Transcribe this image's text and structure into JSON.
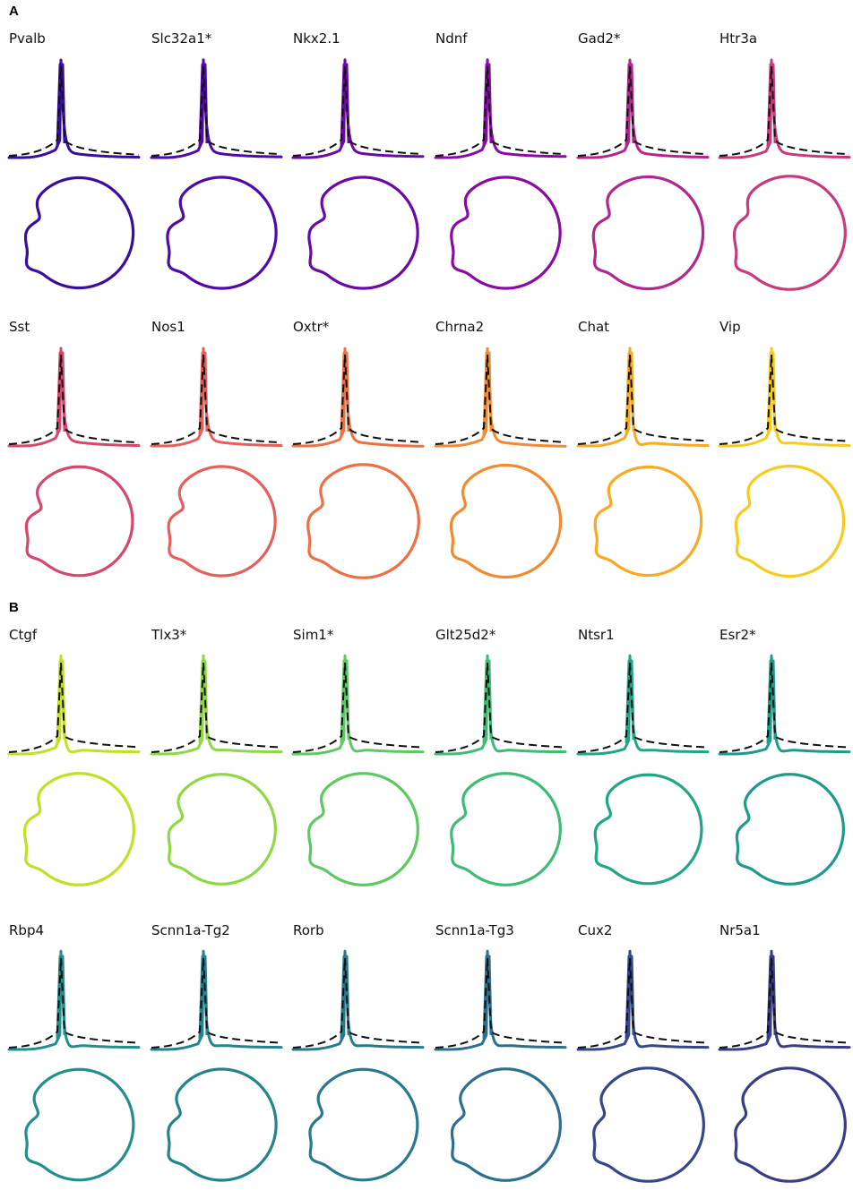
{
  "chart_data": [
    {
      "panel": "A",
      "type": "line",
      "title": "",
      "cells": [
        {
          "name": "Pvalb",
          "color": "#370f9c",
          "spike": 1.0,
          "preamp": 0.55,
          "fit": 0.2,
          "hyper": 0.18,
          "tail": 0.0,
          "loop": 0.86,
          "notch": 0.55,
          "notchpos": 0.4
        },
        {
          "name": "Slc32a1*",
          "color": "#4f0aa8",
          "spike": 1.0,
          "preamp": 0.5,
          "fit": 0.3,
          "hyper": 0.12,
          "tail": -0.01,
          "loop": 0.9,
          "notch": 0.62,
          "notchpos": 0.42
        },
        {
          "name": "Nkx2.1",
          "color": "#6b08a8",
          "spike": 1.0,
          "preamp": 0.5,
          "fit": 0.32,
          "hyper": 0.12,
          "tail": -0.02,
          "loop": 0.9,
          "notch": 0.6,
          "notchpos": 0.42
        },
        {
          "name": "Ndnf",
          "color": "#8b0aa5",
          "spike": 1.0,
          "preamp": 0.55,
          "fit": 0.3,
          "hyper": 0.12,
          "tail": -0.02,
          "loop": 0.9,
          "notch": 0.6,
          "notchpos": 0.45
        },
        {
          "name": "Gad2*",
          "color": "#b2268f",
          "spike": 1.0,
          "preamp": 0.5,
          "fit": 0.3,
          "hyper": 0.12,
          "tail": 0.0,
          "loop": 0.94,
          "notch": 0.58,
          "notchpos": 0.45
        },
        {
          "name": "Htr3a",
          "color": "#c73a7c",
          "spike": 1.0,
          "preamp": 0.45,
          "fit": 0.3,
          "hyper": 0.12,
          "tail": 0.0,
          "loop": 1.0,
          "notch": 0.45,
          "notchpos": 0.45
        },
        {
          "name": "Sst",
          "color": "#d6476c",
          "spike": 1.0,
          "preamp": 0.55,
          "fit": 0.3,
          "hyper": 0.12,
          "tail": 0.0,
          "loop": 0.8,
          "notch": 0.62,
          "notchpos": 0.38
        },
        {
          "name": "Nos1",
          "color": "#e4605b",
          "spike": 1.0,
          "preamp": 0.5,
          "fit": 0.3,
          "hyper": 0.12,
          "tail": 0.0,
          "loop": 0.82,
          "notch": 0.6,
          "notchpos": 0.38
        },
        {
          "name": "Oxtr*",
          "color": "#ec7044",
          "spike": 1.0,
          "preamp": 0.45,
          "fit": 0.35,
          "hyper": 0.15,
          "tail": 0.02,
          "loop": 1.0,
          "notch": 0.55,
          "notchpos": 0.42
        },
        {
          "name": "Chrna2",
          "color": "#f28a30",
          "spike": 1.0,
          "preamp": 0.45,
          "fit": 0.35,
          "hyper": 0.15,
          "tail": 0.02,
          "loop": 0.94,
          "notch": 0.55,
          "notchpos": 0.4
        },
        {
          "name": "Chat",
          "color": "#f7aa22",
          "spike": 1.0,
          "preamp": 0.55,
          "fit": 0.6,
          "hyper": 0.9,
          "tail": 0.0,
          "loop": 0.78,
          "notch": 0.58,
          "notchpos": 0.45
        },
        {
          "name": "Vip",
          "color": "#f6cb1e",
          "spike": 1.0,
          "preamp": 0.55,
          "fit": 0.55,
          "hyper": 0.6,
          "tail": 0.0,
          "loop": 0.86,
          "notch": 0.5,
          "notchpos": 0.42
        }
      ]
    },
    {
      "panel": "B",
      "type": "line",
      "title": "",
      "cells": [
        {
          "name": "Ctgf",
          "color": "#c2df23",
          "spike": 1.0,
          "preamp": 0.45,
          "fit": 0.95,
          "hyper": 0.95,
          "tail": -0.05,
          "loop": 0.92,
          "notch": 0.55,
          "notchpos": 0.45
        },
        {
          "name": "Tlx3*",
          "color": "#8fd744",
          "spike": 1.0,
          "preamp": 0.4,
          "fit": 0.9,
          "hyper": 0.5,
          "tail": -0.05,
          "loop": 0.84,
          "notch": 0.6,
          "notchpos": 0.35
        },
        {
          "name": "Sim1*",
          "color": "#5ec962",
          "spike": 1.0,
          "preamp": 0.4,
          "fit": 0.9,
          "hyper": 0.8,
          "tail": -0.05,
          "loop": 0.92,
          "notch": 0.55,
          "notchpos": 0.42
        },
        {
          "name": "Glt25d2*",
          "color": "#3fbc73",
          "spike": 1.0,
          "preamp": 0.4,
          "fit": 0.9,
          "hyper": 0.8,
          "tail": -0.05,
          "loop": 0.92,
          "notch": 0.55,
          "notchpos": 0.4
        },
        {
          "name": "Ntsr1",
          "color": "#21a585",
          "spike": 1.0,
          "preamp": 0.35,
          "fit": 0.9,
          "hyper": 0.6,
          "tail": -0.05,
          "loop": 0.8,
          "notch": 0.62,
          "notchpos": 0.4
        },
        {
          "name": "Esr2*",
          "color": "#1f9a8a",
          "spike": 1.0,
          "preamp": 0.35,
          "fit": 0.9,
          "hyper": 0.8,
          "tail": -0.05,
          "loop": 0.84,
          "notch": 0.55,
          "notchpos": 0.32
        },
        {
          "name": "Rbp4",
          "color": "#218f8d",
          "spike": 1.0,
          "preamp": 0.4,
          "fit": 0.9,
          "hyper": 0.8,
          "tail": -0.05,
          "loop": 0.88,
          "notch": 0.55,
          "notchpos": 0.32
        },
        {
          "name": "Scnn1a-Tg2",
          "color": "#23838e",
          "spike": 1.0,
          "preamp": 0.4,
          "fit": 0.9,
          "hyper": 0.6,
          "tail": -0.05,
          "loop": 0.9,
          "notch": 0.55,
          "notchpos": 0.32
        },
        {
          "name": "Rorb",
          "color": "#277a8e",
          "spike": 1.0,
          "preamp": 0.4,
          "fit": 0.9,
          "hyper": 0.6,
          "tail": -0.05,
          "loop": 0.88,
          "notch": 0.55,
          "notchpos": 0.32
        },
        {
          "name": "Scnn1a-Tg3",
          "color": "#2c6f8e",
          "spike": 1.0,
          "preamp": 0.4,
          "fit": 0.9,
          "hyper": 0.6,
          "tail": -0.05,
          "loop": 0.92,
          "notch": 0.55,
          "notchpos": 0.32
        },
        {
          "name": "Cux2",
          "color": "#35478a",
          "spike": 1.0,
          "preamp": 0.4,
          "fit": 0.9,
          "hyper": 0.8,
          "tail": -0.05,
          "loop": 1.0,
          "notch": 0.5,
          "notchpos": 0.3
        },
        {
          "name": "Nr5a1",
          "color": "#3a3d86",
          "spike": 1.0,
          "preamp": 0.4,
          "fit": 0.9,
          "hyper": 0.8,
          "tail": -0.05,
          "loop": 1.0,
          "notch": 0.5,
          "notchpos": 0.3
        }
      ]
    }
  ]
}
